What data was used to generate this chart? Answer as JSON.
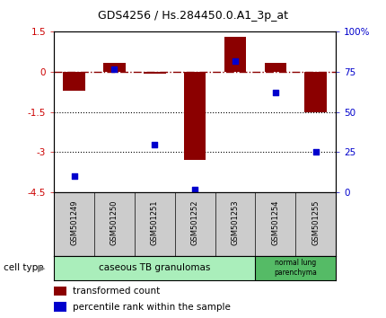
{
  "title": "GDS4256 / Hs.284450.0.A1_3p_at",
  "samples": [
    "GSM501249",
    "GSM501250",
    "GSM501251",
    "GSM501252",
    "GSM501253",
    "GSM501254",
    "GSM501255"
  ],
  "red_values": [
    -0.7,
    0.35,
    -0.05,
    -3.3,
    1.3,
    0.35,
    -1.5
  ],
  "blue_values_pct": [
    10,
    77,
    30,
    2,
    82,
    62,
    25
  ],
  "ylim_left": [
    -4.5,
    1.5
  ],
  "ylim_right": [
    0,
    100
  ],
  "yticks_left": [
    -4.5,
    -3.0,
    -1.5,
    0.0,
    1.5
  ],
  "yticks_right": [
    0,
    25,
    50,
    75,
    100
  ],
  "ytick_labels_right": [
    "0",
    "25",
    "50",
    "75",
    "100%"
  ],
  "dotted_lines": [
    -1.5,
    -3.0
  ],
  "red_color": "#8B0000",
  "blue_color": "#0000CD",
  "bar_width": 0.55,
  "cell_type_label": "cell type",
  "legend_red": "transformed count",
  "legend_blue": "percentile rank within the sample",
  "bg_color": "#FFFFFF",
  "tick_label_color_left": "#CC0000",
  "tick_label_color_right": "#0000CC",
  "grp1_color": "#AAEEBB",
  "grp2_color": "#55BB66",
  "tick_bg_color": "#CCCCCC"
}
